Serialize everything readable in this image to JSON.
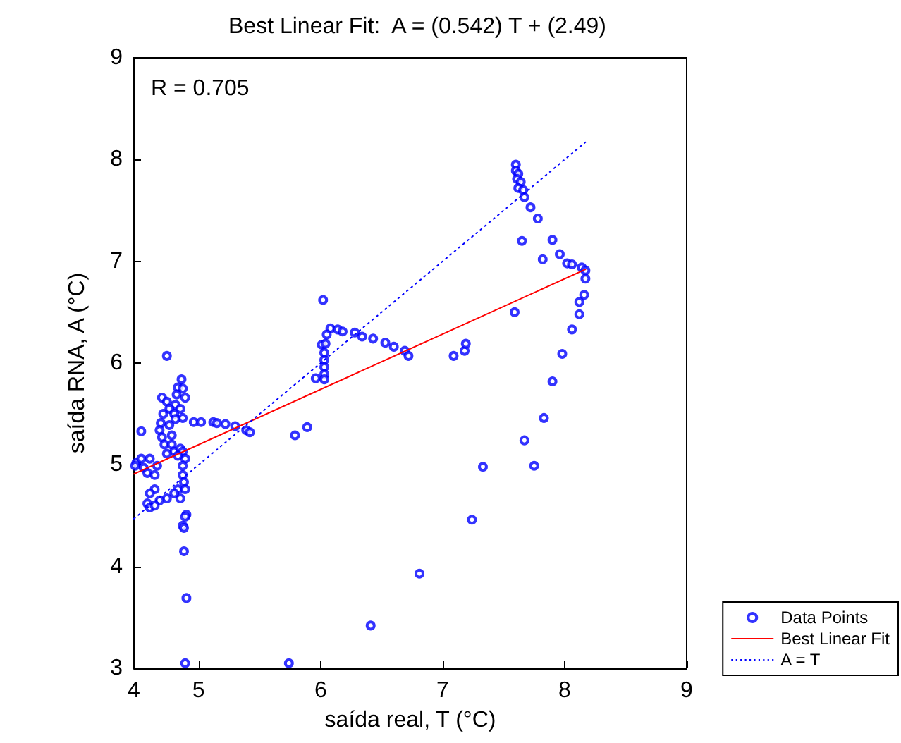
{
  "chart_data": {
    "type": "scatter",
    "title": "Best Linear Fit:  A = (0.542) T + (2.49)",
    "xlabel": "saída real, T (°C)",
    "ylabel": "saída RNA, A (°C)",
    "annotations": [
      "R = 0.705"
    ],
    "xlim": [
      4.47,
      9
    ],
    "xticks": [
      {
        "value": 4.47,
        "label": "4"
      },
      5,
      6,
      7,
      8,
      9
    ],
    "ylim": [
      3,
      9
    ],
    "yticks": [
      3,
      4,
      5,
      6,
      7,
      8,
      9
    ],
    "grid": false,
    "legend": "bottom right",
    "series": [
      {
        "name": "Data Points",
        "type": "scatter",
        "marker": "circle",
        "color": "#0000ff",
        "x": [
          4.74,
          4.86,
          4.83,
          4.87,
          4.82,
          4.89,
          4.7,
          4.74,
          4.81,
          4.76,
          4.85,
          4.71,
          4.8,
          4.87,
          4.69,
          4.81,
          4.96,
          5.02,
          5.12,
          5.15,
          5.22,
          5.3,
          5.39,
          5.42,
          4.53,
          4.68,
          4.76,
          4.7,
          4.78,
          4.72,
          4.78,
          4.8,
          4.85,
          4.87,
          4.74,
          4.89,
          4.83,
          4.49,
          4.53,
          4.48,
          4.55,
          4.6,
          4.58,
          4.64,
          4.66,
          4.87,
          4.87,
          4.88,
          4.83,
          4.89,
          4.85,
          4.8,
          4.74,
          4.68,
          4.64,
          4.6,
          4.58,
          4.6,
          4.64,
          4.9,
          4.89,
          4.87,
          4.88,
          4.88,
          4.9,
          4.89,
          5.74,
          5.79,
          6.02,
          5.89,
          6.08,
          6.14,
          6.18,
          6.28,
          6.34,
          6.43,
          6.53,
          6.6,
          6.69,
          6.72,
          6.05,
          6.01,
          6.04,
          6.03,
          6.03,
          6.03,
          6.03,
          6.03,
          5.96,
          7.09,
          7.18,
          7.19,
          7.33,
          7.24,
          6.81,
          6.41,
          7.6,
          7.6,
          7.62,
          7.61,
          7.64,
          7.62,
          7.66,
          7.67,
          7.72,
          7.78,
          7.65,
          7.9,
          7.82,
          7.96,
          8.02,
          8.06,
          8.14,
          8.17,
          8.17,
          8.16,
          8.12,
          8.12,
          8.06,
          7.98,
          7.9,
          7.59,
          7.83,
          7.67,
          7.75
        ],
        "values": [
          6.07,
          5.84,
          5.76,
          5.75,
          5.69,
          5.66,
          5.66,
          5.62,
          5.59,
          5.55,
          5.55,
          5.5,
          5.5,
          5.46,
          5.41,
          5.45,
          5.42,
          5.42,
          5.42,
          5.41,
          5.4,
          5.38,
          5.34,
          5.32,
          5.33,
          5.34,
          5.39,
          5.27,
          5.29,
          5.2,
          5.2,
          5.13,
          5.16,
          5.13,
          5.11,
          5.06,
          5.09,
          5.02,
          5.06,
          4.99,
          4.97,
          5.06,
          4.92,
          4.9,
          4.99,
          4.99,
          4.9,
          4.83,
          4.76,
          4.76,
          4.67,
          4.72,
          4.67,
          4.65,
          4.76,
          4.72,
          4.62,
          4.58,
          4.6,
          4.51,
          4.49,
          4.4,
          4.38,
          4.15,
          3.69,
          3.05,
          3.05,
          5.29,
          6.62,
          5.37,
          6.34,
          6.33,
          6.31,
          6.3,
          6.26,
          6.24,
          6.2,
          6.16,
          6.12,
          6.07,
          6.28,
          6.18,
          6.19,
          6.1,
          6.03,
          5.96,
          5.89,
          5.84,
          5.85,
          6.07,
          6.12,
          6.19,
          4.98,
          4.46,
          3.93,
          3.42,
          7.95,
          7.89,
          7.86,
          7.81,
          7.78,
          7.72,
          7.7,
          7.63,
          7.53,
          7.42,
          7.2,
          7.21,
          7.02,
          7.07,
          6.98,
          6.97,
          6.94,
          6.91,
          6.83,
          6.67,
          6.6,
          6.48,
          6.33,
          6.09,
          5.82,
          6.5,
          5.46,
          5.24,
          4.99
        ]
      },
      {
        "name": "Best Linear Fit",
        "type": "line",
        "color": "#ff0000",
        "line_style": "solid",
        "x": [
          4.47,
          8.17
        ],
        "values": [
          4.91,
          6.92
        ]
      },
      {
        "name": "A = T",
        "type": "line",
        "color": "#0000ff",
        "line_style": "dotted",
        "x": [
          4.47,
          8.17
        ],
        "values": [
          4.47,
          8.17
        ]
      }
    ]
  }
}
